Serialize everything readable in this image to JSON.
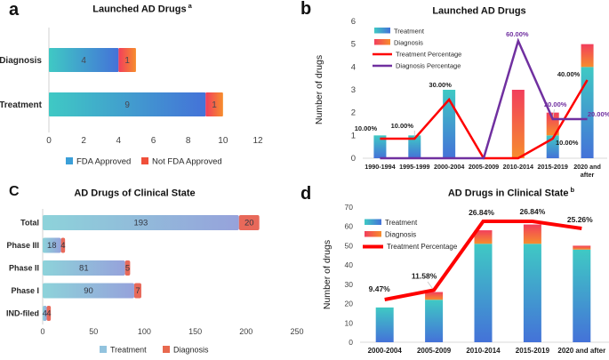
{
  "colors": {
    "treatment_top": "#3fc9c4",
    "treatment_bottom": "#4472d8",
    "diagnosis_top": "#f23e5c",
    "diagnosis_bottom": "#f68d2d",
    "c_treatment_left": "#8dd3da",
    "c_treatment_right": "#96a2db",
    "c_diagnosis": "#e8695a",
    "legend_fda_blue": "#3b9fd8",
    "legend_notfda_red": "#f04f3a",
    "c_legend_treatment": "#92c3de",
    "c_legend_diagnosis": "#e8694f",
    "red_line": "#fe0000",
    "purple_line": "#7030a0",
    "axis": "#d9d9d9",
    "tick_text": "#3f3f3f",
    "value_text": "#474752",
    "black_text": "#1a1a1a"
  },
  "chart_data": [
    {
      "panel_letter": "a",
      "type": "bar",
      "orientation": "horizontal",
      "stacked": true,
      "title": "Launched AD Drugs",
      "title_superscript": "a",
      "categories": [
        "Diagnosis",
        "Treatment"
      ],
      "series": [
        {
          "name": "FDA Approved",
          "values": [
            4,
            9
          ]
        },
        {
          "name": "Not FDA Approved",
          "values": [
            1,
            1
          ]
        }
      ],
      "xlim": [
        0,
        12
      ],
      "xticks": [
        0,
        2,
        4,
        6,
        8,
        10,
        12
      ],
      "legend_position": "bottom"
    },
    {
      "panel_letter": "b",
      "type": "bar+line",
      "orientation": "vertical",
      "stacked": true,
      "title": "Launched AD Drugs",
      "title_superscript": "",
      "ylabel": "Number of drugs",
      "categories": [
        "1990-1994",
        "1995-1999",
        "2000-2004",
        "2005-2009",
        "2010-2014",
        "2015-2019",
        "2020 and after"
      ],
      "bar_series": [
        {
          "name": "Treatment",
          "values": [
            1,
            1,
            3,
            0,
            0,
            1,
            4
          ]
        },
        {
          "name": "Diagnosis",
          "values": [
            0,
            0,
            0,
            0,
            3,
            1,
            1
          ]
        }
      ],
      "line_series": [
        {
          "name": "Treatment Percentage",
          "color_key": "red_line",
          "values_pct": [
            10,
            10,
            30,
            0,
            0,
            10,
            40
          ],
          "labels": [
            "10.00%",
            "10.00%",
            "30.00%",
            "",
            "",
            "10.00%",
            "40.00%"
          ]
        },
        {
          "name": "Diagnosis Percentage",
          "color_key": "purple_line",
          "values_pct": [
            0,
            0,
            0,
            0,
            60,
            20,
            20
          ],
          "labels": [
            "",
            "",
            "",
            "",
            "60.00%",
            "20.00%",
            "20.00%"
          ]
        }
      ],
      "ylim": [
        0,
        6
      ],
      "yticks": [
        0,
        1,
        2,
        3,
        4,
        5,
        6
      ],
      "secondary_pct_axis_max": 70,
      "legend_position": "top-left"
    },
    {
      "panel_letter": "C",
      "type": "bar",
      "orientation": "horizontal",
      "stacked": true,
      "title": "AD Drugs of Clinical State",
      "title_superscript": "",
      "categories": [
        "Total",
        "Phase III",
        "Phase II",
        "Phase I",
        "IND-filed"
      ],
      "series": [
        {
          "name": "Treatment",
          "values": [
            193,
            18,
            81,
            90,
            4
          ]
        },
        {
          "name": "Diagnosis",
          "values": [
            20,
            4,
            5,
            7,
            4
          ]
        }
      ],
      "xlim": [
        0,
        250
      ],
      "xticks": [
        0,
        50,
        100,
        150,
        200,
        250
      ],
      "legend_position": "bottom"
    },
    {
      "panel_letter": "d",
      "type": "bar+line",
      "orientation": "vertical",
      "stacked": true,
      "title": "AD Drugs in Clinical State",
      "title_superscript": "b",
      "ylabel": "Number of drugs",
      "categories": [
        "2000-2004",
        "2005-2009",
        "2010-2014",
        "2015-2019",
        "2020 and after"
      ],
      "bar_series": [
        {
          "name": "Treatment",
          "values": [
            18,
            22,
            51,
            51,
            48
          ]
        },
        {
          "name": "Diagnosis",
          "values": [
            0,
            4,
            7,
            10,
            2
          ]
        }
      ],
      "line_series": [
        {
          "name": "Treatment Percentage",
          "color_key": "red_line",
          "values_pct": [
            9.47,
            11.58,
            26.84,
            26.84,
            25.26
          ],
          "labels": [
            "9.47%",
            "11.58%",
            "26.84%",
            "26.84%",
            "25.26%"
          ]
        }
      ],
      "ylim": [
        0,
        70
      ],
      "yticks": [
        0,
        10,
        20,
        30,
        40,
        50,
        60,
        70
      ],
      "secondary_pct_axis_max": 30,
      "legend_position": "top-left"
    }
  ]
}
